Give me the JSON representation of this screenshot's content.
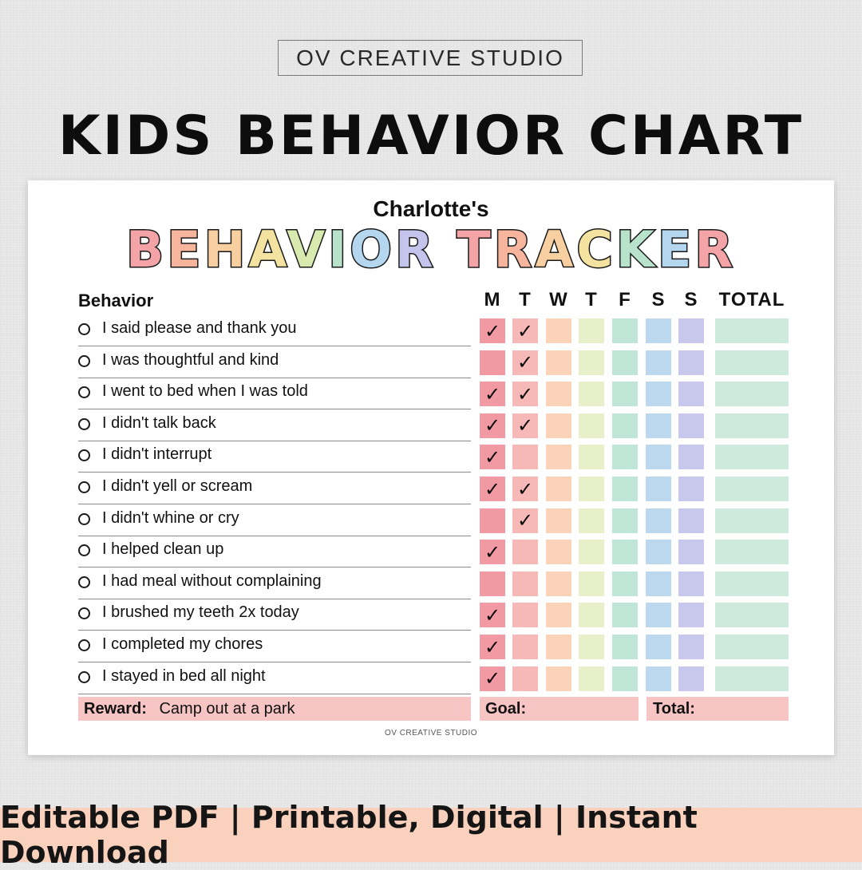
{
  "brand": "OV CREATIVE STUDIO",
  "headline": "KIDS BEHAVIOR CHART",
  "chart": {
    "child_name": "Charlotte's",
    "title_letters": [
      {
        "ch": "B",
        "color": "#f4a4a7"
      },
      {
        "ch": "E",
        "color": "#f6b59c"
      },
      {
        "ch": "H",
        "color": "#f8cfa0"
      },
      {
        "ch": "A",
        "color": "#f4e3a0"
      },
      {
        "ch": "V",
        "color": "#d9eab0"
      },
      {
        "ch": "I",
        "color": "#b8e2cc"
      },
      {
        "ch": "O",
        "color": "#b4d6ee"
      },
      {
        "ch": "R",
        "color": "#c4c4ec"
      },
      {
        "ch": " ",
        "color": "#ffffff"
      },
      {
        "ch": "T",
        "color": "#f4a4a7"
      },
      {
        "ch": "R",
        "color": "#f6b59c"
      },
      {
        "ch": "A",
        "color": "#f8cfa0"
      },
      {
        "ch": "C",
        "color": "#f4e3a0"
      },
      {
        "ch": "K",
        "color": "#b8e2cc"
      },
      {
        "ch": "E",
        "color": "#b4d6ee"
      },
      {
        "ch": "R",
        "color": "#f4a4a7"
      }
    ],
    "behavior_header": "Behavior",
    "days": [
      "M",
      "T",
      "W",
      "T",
      "F",
      "S",
      "S"
    ],
    "total_header": "TOTAL",
    "day_colors": [
      "#f29aa3",
      "#f7b9b7",
      "#fbd3b9",
      "#e7f0c8",
      "#bfe5d6",
      "#bcd8ef",
      "#c8c8ec"
    ],
    "check_glyph": "✓",
    "behaviors": [
      {
        "label": "I said please and thank you",
        "checks": [
          true,
          true,
          false,
          false,
          false,
          false,
          false
        ]
      },
      {
        "label": "I was thoughtful and kind",
        "checks": [
          false,
          true,
          false,
          false,
          false,
          false,
          false
        ]
      },
      {
        "label": "I went to bed when I was told",
        "checks": [
          true,
          true,
          false,
          false,
          false,
          false,
          false
        ]
      },
      {
        "label": "I didn't talk back",
        "checks": [
          true,
          true,
          false,
          false,
          false,
          false,
          false
        ]
      },
      {
        "label": "I didn't interrupt",
        "checks": [
          true,
          false,
          false,
          false,
          false,
          false,
          false
        ]
      },
      {
        "label": "I didn't yell or scream",
        "checks": [
          true,
          true,
          false,
          false,
          false,
          false,
          false
        ]
      },
      {
        "label": "I didn't whine or cry",
        "checks": [
          false,
          true,
          false,
          false,
          false,
          false,
          false
        ]
      },
      {
        "label": "I helped clean up",
        "checks": [
          true,
          false,
          false,
          false,
          false,
          false,
          false
        ]
      },
      {
        "label": "I had meal without complaining",
        "checks": [
          false,
          false,
          false,
          false,
          false,
          false,
          false
        ]
      },
      {
        "label": "I brushed my teeth 2x today",
        "checks": [
          true,
          false,
          false,
          false,
          false,
          false,
          false
        ]
      },
      {
        "label": "I completed my chores",
        "checks": [
          true,
          false,
          false,
          false,
          false,
          false,
          false
        ]
      },
      {
        "label": "I stayed in bed all night",
        "checks": [
          true,
          false,
          false,
          false,
          false,
          false,
          false
        ]
      }
    ],
    "reward_label": "Reward:",
    "reward_value": "Camp out at a park",
    "goal_label": "Goal:",
    "total_label": "Total:",
    "footer_credit": "OV CREATIVE STUDIO"
  },
  "banner": "Editable PDF | Printable, Digital | Instant Download"
}
